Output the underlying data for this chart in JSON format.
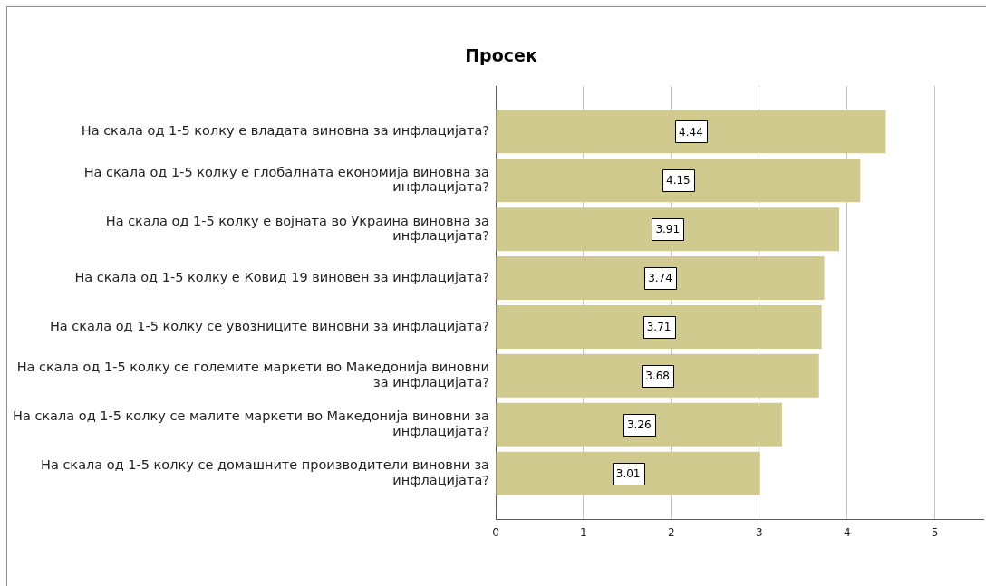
{
  "chart_data": {
    "type": "bar",
    "orientation": "horizontal",
    "title": "Просек",
    "categories": [
      "На скала од 1-5 колку е владата виновна за инфлацијата?",
      "На скала од 1-5 колку е глобалната економија виновна за инфлацијата?",
      "На скала од 1-5 колку е војната во Украина виновна за инфлацијата?",
      "На скала од 1-5 колку е Ковид 19 виновен за инфлацијата?",
      "На скала од 1-5 колку се увозниците виновни за инфлацијата?",
      "На скала од 1-5 колку се големите маркети во Македонија виновни за инфлацијата?",
      "На скала од 1-5 колку се малите маркети во Македонија виновни за инфлацијата?",
      "На скала од 1-5 колку се домашните производители виновни за инфлацијата?"
    ],
    "values": [
      4.44,
      4.15,
      3.91,
      3.74,
      3.71,
      3.68,
      3.26,
      3.01
    ],
    "color": "#d0ca8f",
    "xlim": [
      0,
      5.55
    ],
    "xticks": [
      0,
      1,
      2,
      3,
      4,
      5
    ],
    "grid": "x",
    "data_labels": true
  }
}
